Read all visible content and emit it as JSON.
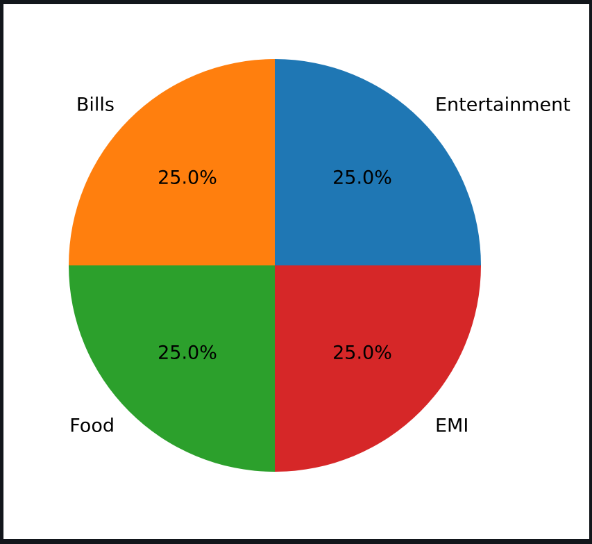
{
  "chart_data": {
    "type": "pie",
    "title": "",
    "slices": [
      {
        "label": "Entertainment",
        "value": 25.0,
        "percent_label": "25.0%",
        "color": "#1f77b4"
      },
      {
        "label": "Bills",
        "value": 25.0,
        "percent_label": "25.0%",
        "color": "#ff7f0e"
      },
      {
        "label": "Food",
        "value": 25.0,
        "percent_label": "25.0%",
        "color": "#2ca02c"
      },
      {
        "label": "EMI",
        "value": 25.0,
        "percent_label": "25.0%",
        "color": "#d62728"
      }
    ],
    "start_angle_deg": 0,
    "direction": "counterclockwise",
    "legend": "none"
  }
}
